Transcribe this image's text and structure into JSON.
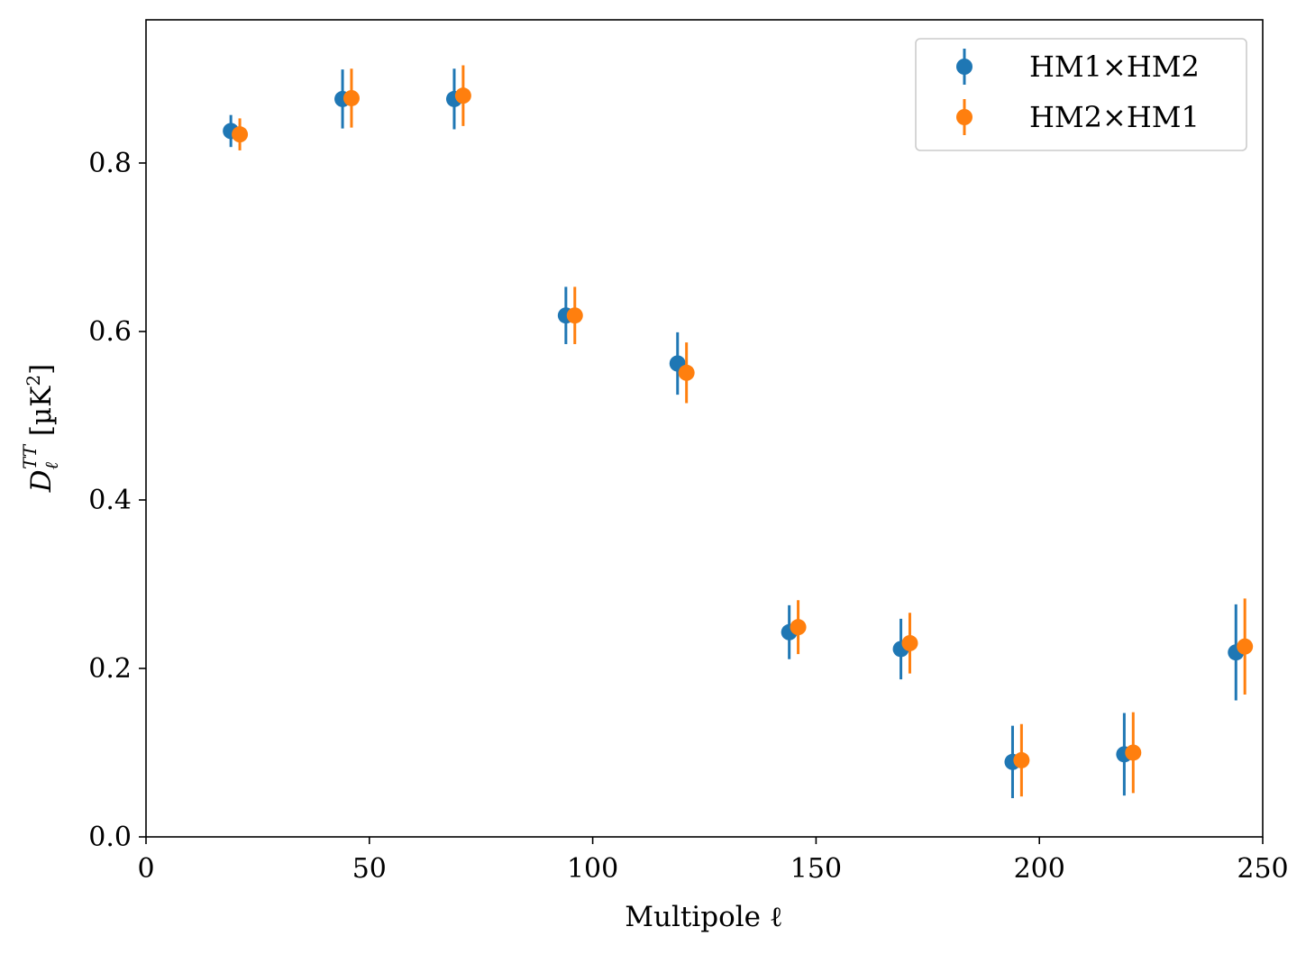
{
  "chart_data": {
    "type": "scatter",
    "title": "",
    "xlabel": "Multipole ℓ",
    "ylabel": {
      "base": "D",
      "subscript": "ℓ",
      "superscript": "TT",
      "unit_open": " [µK",
      "unit_power": "2",
      "unit_close": "]"
    },
    "xlim": [
      0,
      250
    ],
    "ylim": [
      0,
      0.97
    ],
    "xticks": [
      0,
      50,
      100,
      150,
      200,
      250
    ],
    "xtick_labels": [
      "0",
      "50",
      "100",
      "150",
      "200",
      "250"
    ],
    "yticks": [
      0.0,
      0.2,
      0.4,
      0.6,
      0.8
    ],
    "ytick_labels": [
      "0.0",
      "0.2",
      "0.4",
      "0.6",
      "0.8"
    ],
    "grid": false,
    "legend_position": "top-right",
    "series": [
      {
        "name": "HM1×HM2",
        "color": "#1f77b4",
        "x": [
          19,
          44,
          69,
          94,
          119,
          144,
          169,
          194,
          219,
          244
        ],
        "y": [
          0.838,
          0.876,
          0.876,
          0.619,
          0.562,
          0.243,
          0.223,
          0.089,
          0.098,
          0.219
        ],
        "yerr": [
          0.019,
          0.035,
          0.036,
          0.034,
          0.037,
          0.032,
          0.036,
          0.043,
          0.049,
          0.057
        ]
      },
      {
        "name": "HM2×HM1",
        "color": "#ff7f0e",
        "x": [
          21,
          46,
          71,
          96,
          121,
          146,
          171,
          196,
          221,
          246
        ],
        "y": [
          0.834,
          0.877,
          0.88,
          0.619,
          0.551,
          0.249,
          0.23,
          0.091,
          0.1,
          0.226
        ],
        "yerr": [
          0.019,
          0.035,
          0.036,
          0.034,
          0.036,
          0.032,
          0.036,
          0.043,
          0.048,
          0.057
        ]
      }
    ]
  }
}
